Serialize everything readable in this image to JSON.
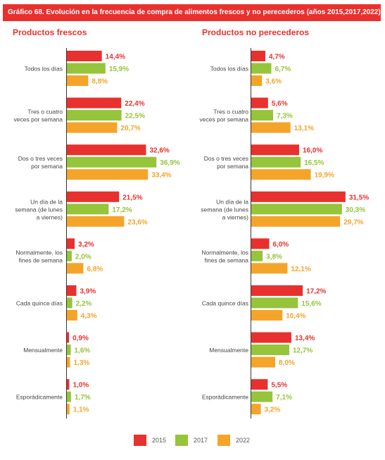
{
  "title": "Gráfico 68. Evolución en la frecuencia de compra de alimentos frescos y no perecederos (años 2015,2017,2022)",
  "colors": {
    "2015": "#e8312e",
    "2017": "#96c43a",
    "2022": "#f5a42a",
    "title_bg": "#e8312e"
  },
  "chart_data": [
    {
      "type": "bar",
      "orientation": "horizontal",
      "title": "Productos frescos",
      "categories": [
        "Todos los días",
        "Tres o cuatro veces por semana",
        "Dos o tres veces por semana",
        "Un día de la semana (de lunes a viernes)",
        "Normalmente, los fines de semana",
        "Cada quince días",
        "Mensualmente",
        "Esporádicamente"
      ],
      "category_lines": [
        [
          "Todos los días"
        ],
        [
          "Tres o cuatro",
          "veces por semana"
        ],
        [
          "Dos o tres veces",
          "por semana"
        ],
        [
          "Un día de la",
          "semana (de lunes",
          "a viernes)"
        ],
        [
          "Normalmente, los",
          "fines de semana"
        ],
        [
          "Cada quince días"
        ],
        [
          "Mensualmente"
        ],
        [
          "Esporádicamente"
        ]
      ],
      "series": [
        {
          "name": "2015",
          "values": [
            14.4,
            22.4,
            32.6,
            21.5,
            3.2,
            3.9,
            0.9,
            1.0
          ],
          "labels": [
            "14,4%",
            "22,4%",
            "32,6%",
            "21,5%",
            "3,2%",
            "3,9%",
            "0,9%",
            "1,0%"
          ]
        },
        {
          "name": "2017",
          "values": [
            15.9,
            22.5,
            36.9,
            17.2,
            2.0,
            2.2,
            1.6,
            1.7
          ],
          "labels": [
            "15,9%",
            "22,5%",
            "36,9%",
            "17,2%",
            "2,0%",
            "2,2%",
            "1,6%",
            "1,7%"
          ]
        },
        {
          "name": "2022",
          "values": [
            8.8,
            20.7,
            33.4,
            23.6,
            6.8,
            4.3,
            1.3,
            1.1
          ],
          "labels": [
            "8,8%",
            "20,7%",
            "33,4%",
            "23,6%",
            "6,8%",
            "4,3%",
            "1,3%",
            "1,1%"
          ]
        }
      ],
      "grid": false
    },
    {
      "type": "bar",
      "orientation": "horizontal",
      "title": "Productos no perecederos",
      "categories": [
        "Todos los días",
        "Tres o cuatro veces por semana",
        "Dos o tres veces por semana",
        "Un día de la semana (de lunes a viernes)",
        "Normalmente, los fines de semana",
        "Cada quince días",
        "Mensualmente",
        "Esporádicamente"
      ],
      "category_lines": [
        [
          "Todos los días"
        ],
        [
          "Tres o cuatro",
          "veces por semana"
        ],
        [
          "Dos o tres veces",
          "por semana"
        ],
        [
          "Un día de la",
          "semana (de lunes",
          "a viernes)"
        ],
        [
          "Normalmente, los",
          "fines de semana"
        ],
        [
          "Cada quince días"
        ],
        [
          "Mensualmente"
        ],
        [
          "Esporádicamente"
        ]
      ],
      "series": [
        {
          "name": "2015",
          "values": [
            4.7,
            5.6,
            16.0,
            31.5,
            6.0,
            17.2,
            13.4,
            5.5
          ],
          "labels": [
            "4,7%",
            "5,6%",
            "16,0%",
            "31,5%",
            "6,0%",
            "17,2%",
            "13,4%",
            "5,5%"
          ]
        },
        {
          "name": "2017",
          "values": [
            6.7,
            7.3,
            16.5,
            30.3,
            3.8,
            15.6,
            12.7,
            7.1
          ],
          "labels": [
            "6,7%",
            "7,3%",
            "16,5%",
            "30,3%",
            "3,8%",
            "15,6%",
            "12,7%",
            "7,1%"
          ]
        },
        {
          "name": "2022",
          "values": [
            3.6,
            13.1,
            19.9,
            29.7,
            12.1,
            10.4,
            8.0,
            3.2
          ],
          "labels": [
            "3,6%",
            "13,1%",
            "19,9%",
            "29,7%",
            "12,1%",
            "10,4%",
            "8,0%",
            "3,2%"
          ]
        }
      ],
      "grid": false
    }
  ],
  "legend": [
    {
      "label": "2015",
      "color": "#e8312e"
    },
    {
      "label": "2017",
      "color": "#96c43a"
    },
    {
      "label": "2022",
      "color": "#f5a42a"
    }
  ]
}
